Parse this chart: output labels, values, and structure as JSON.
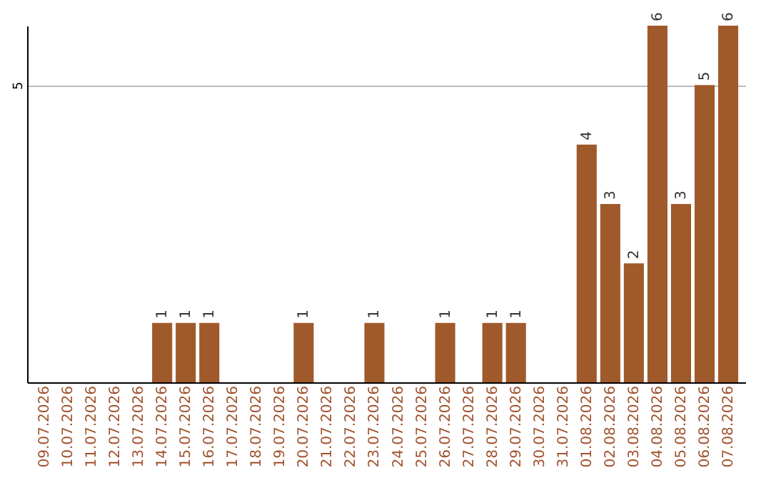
{
  "chart_data": {
    "type": "bar",
    "categories": [
      "09.07.2026",
      "10.07.2026",
      "11.07.2026",
      "12.07.2026",
      "13.07.2026",
      "14.07.2026",
      "15.07.2026",
      "16.07.2026",
      "17.07.2026",
      "18.07.2026",
      "19.07.2026",
      "20.07.2026",
      "21.07.2026",
      "22.07.2026",
      "23.07.2026",
      "24.07.2026",
      "25.07.2026",
      "26.07.2026",
      "27.07.2026",
      "28.07.2026",
      "29.07.2026",
      "30.07.2026",
      "31.07.2026",
      "01.08.2026",
      "02.08.2026",
      "03.08.2026",
      "04.08.2026",
      "05.08.2026",
      "06.08.2026",
      "07.08.2026"
    ],
    "values": [
      0,
      0,
      0,
      0,
      0,
      1,
      1,
      1,
      0,
      0,
      0,
      1,
      0,
      0,
      1,
      0,
      0,
      1,
      0,
      1,
      1,
      0,
      0,
      4,
      3,
      2,
      6,
      3,
      5,
      6
    ],
    "value_labels": [
      null,
      null,
      null,
      null,
      null,
      "1",
      "1",
      "1",
      null,
      null,
      null,
      "1",
      null,
      null,
      "1",
      null,
      null,
      "1",
      null,
      "1",
      "1",
      null,
      null,
      "4",
      "3",
      "2",
      "6",
      "3",
      "5",
      "6"
    ],
    "color": "#a0592a",
    "ylim": [
      0,
      6
    ],
    "yticks": [
      5
    ],
    "grid": "y"
  }
}
